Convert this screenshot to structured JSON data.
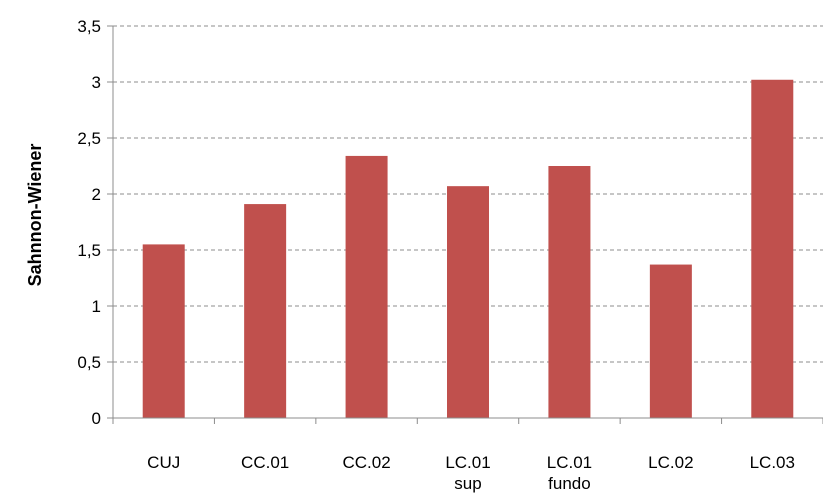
{
  "chart_data": {
    "type": "bar",
    "title": "",
    "xlabel": "",
    "ylabel": "Sahnnon-Wiener",
    "categories": [
      [
        "CUJ"
      ],
      [
        "CC.01"
      ],
      [
        "CC.02"
      ],
      [
        "LC.01",
        "sup"
      ],
      [
        "LC.01",
        "fundo"
      ],
      [
        "LC.02"
      ],
      [
        "LC.03"
      ]
    ],
    "values": [
      1.55,
      1.91,
      2.34,
      2.07,
      2.25,
      1.37,
      3.02
    ],
    "ylim": [
      0,
      3.5
    ],
    "yticks": [
      {
        "value": 0,
        "label": "0"
      },
      {
        "value": 0.5,
        "label": "0,5"
      },
      {
        "value": 1,
        "label": "1"
      },
      {
        "value": 1.5,
        "label": "1,5"
      },
      {
        "value": 2,
        "label": "2"
      },
      {
        "value": 2.5,
        "label": "2,5"
      },
      {
        "value": 3,
        "label": "3"
      },
      {
        "value": 3.5,
        "label": "3,5"
      }
    ],
    "grid": "horizontal dashed",
    "legend": "none",
    "bar_color": "#c0504d"
  }
}
